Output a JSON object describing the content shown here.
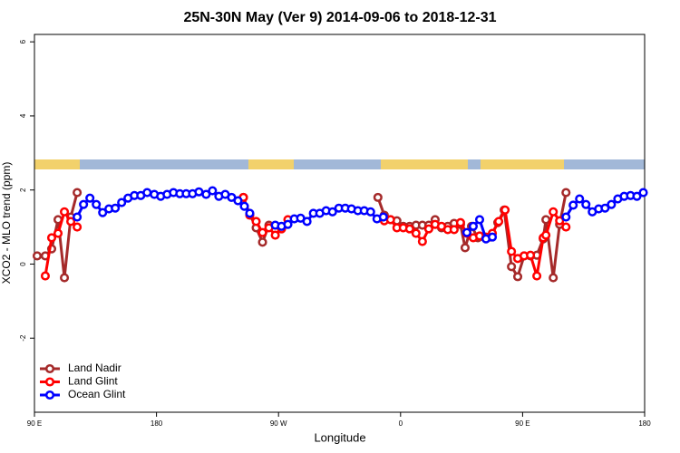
{
  "chart_data": {
    "type": "line",
    "title": "25N-30N May (Ver 9)   2014-09-06 to 2018-12-31",
    "x_label": "Longitude",
    "y_label": "XCO2 - MLO trend (ppm)",
    "xlim": [
      90,
      540
    ],
    "ylim": [
      -4,
      6.2
    ],
    "xticks": [
      {
        "value": 90,
        "label": "90 E"
      },
      {
        "value": 180,
        "label": "180"
      },
      {
        "value": 270,
        "label": "90 W"
      },
      {
        "value": 360,
        "label": "0"
      },
      {
        "value": 450,
        "label": "90 E"
      },
      {
        "value": 540,
        "label": "180"
      }
    ],
    "yticks": [
      -2,
      0,
      2,
      4,
      6
    ],
    "legend": "bottomleft",
    "series": [
      {
        "name": "Land Nadir",
        "color": "#a52a2a",
        "x": [
          92.0,
          98.0,
          102.7,
          107.4,
          112.1,
          116.8,
          121.5,
          null,
          244.1,
          248.8,
          253.5,
          258.2,
          262.9,
          null,
          343.3,
          348.0,
          352.6,
          357.3,
          362.0,
          366.7,
          371.4,
          376.1,
          380.8,
          385.5,
          390.2,
          394.8,
          399.5,
          404.2,
          407.6,
          412.3,
          417.0,
          421.7,
          426.3,
          431.7,
          436.4,
          441.8,
          446.4,
          451.1,
          455.8,
          460.5,
          465.2,
          467.2,
          472.6,
          477.3,
          482.0
        ],
        "values": [
          0.22,
          0.22,
          0.41,
          1.2,
          -0.37,
          1.27,
          1.93,
          null,
          1.8,
          1.34,
          0.98,
          0.59,
          1.05,
          null,
          1.8,
          1.32,
          1.2,
          1.17,
          1.02,
          1.02,
          1.05,
          1.05,
          1.05,
          1.2,
          0.98,
          1.02,
          1.1,
          1.07,
          0.44,
          1.02,
          0.71,
          0.73,
          0.73,
          1.12,
          1.46,
          -0.07,
          -0.34,
          0.22,
          0.22,
          0.24,
          0.68,
          1.2,
          -0.37,
          1.07,
          1.93
        ]
      },
      {
        "name": "Land Glint",
        "color": "#ff0000",
        "x": [
          98.0,
          102.7,
          107.4,
          112.1,
          116.8,
          121.5,
          null,
          244.1,
          248.8,
          253.5,
          258.2,
          262.9,
          267.6,
          272.2,
          276.9,
          null,
          348.0,
          352.6,
          357.3,
          362.0,
          366.7,
          371.4,
          376.1,
          380.8,
          385.5,
          390.2,
          394.8,
          399.5,
          404.2,
          408.9,
          413.6,
          418.3,
          423.0,
          427.7,
          432.4,
          437.1,
          441.8,
          446.4,
          451.1,
          455.8,
          460.5,
          465.2,
          467.2,
          472.6,
          477.3,
          482.0
        ],
        "values": [
          -0.32,
          0.71,
          0.83,
          1.41,
          1.15,
          1.0,
          null,
          1.8,
          1.32,
          1.15,
          0.85,
          0.98,
          0.78,
          0.95,
          1.2,
          null,
          1.17,
          1.2,
          0.98,
          0.98,
          0.95,
          0.83,
          0.61,
          0.95,
          1.07,
          1.02,
          0.93,
          0.93,
          1.12,
          0.83,
          0.71,
          0.76,
          0.73,
          0.83,
          1.15,
          1.46,
          0.34,
          0.15,
          0.22,
          0.24,
          -0.32,
          0.71,
          0.78,
          1.41,
          1.17,
          1.0
        ]
      },
      {
        "name": "Ocean Glint",
        "color": "#0000ff",
        "x": [
          121.5,
          126.2,
          130.9,
          135.6,
          140.3,
          144.9,
          149.6,
          154.3,
          159.0,
          163.7,
          168.4,
          173.1,
          178.4,
          183.1,
          187.8,
          192.5,
          197.2,
          201.9,
          206.6,
          211.3,
          216.6,
          221.3,
          226.0,
          230.7,
          235.4,
          240.1,
          244.8,
          248.8,
          null,
          267.6,
          272.2,
          276.9,
          281.6,
          286.3,
          291.0,
          295.7,
          300.4,
          305.1,
          309.8,
          314.5,
          319.2,
          323.8,
          328.5,
          333.2,
          337.9,
          342.6,
          347.3,
          null,
          408.9,
          413.6,
          418.3,
          423.0,
          427.7,
          null,
          482.0,
          487.3,
          492.0,
          496.7,
          501.4,
          506.1,
          510.8,
          515.5,
          520.2,
          524.9,
          529.6,
          534.3,
          539.0
        ],
        "values": [
          1.27,
          1.61,
          1.78,
          1.61,
          1.39,
          1.49,
          1.51,
          1.66,
          1.78,
          1.85,
          1.85,
          1.93,
          1.88,
          1.83,
          1.88,
          1.93,
          1.9,
          1.9,
          1.9,
          1.95,
          1.88,
          1.98,
          1.83,
          1.88,
          1.8,
          1.71,
          1.56,
          1.37,
          null,
          1.05,
          1.02,
          1.07,
          1.22,
          1.24,
          1.15,
          1.37,
          1.37,
          1.44,
          1.41,
          1.51,
          1.51,
          1.49,
          1.44,
          1.44,
          1.41,
          1.22,
          1.27,
          null,
          0.85,
          1.02,
          1.2,
          0.68,
          0.73,
          null,
          1.27,
          1.59,
          1.76,
          1.61,
          1.41,
          1.49,
          1.51,
          1.61,
          1.76,
          1.83,
          1.85,
          1.83,
          1.93
        ]
      }
    ]
  }
}
